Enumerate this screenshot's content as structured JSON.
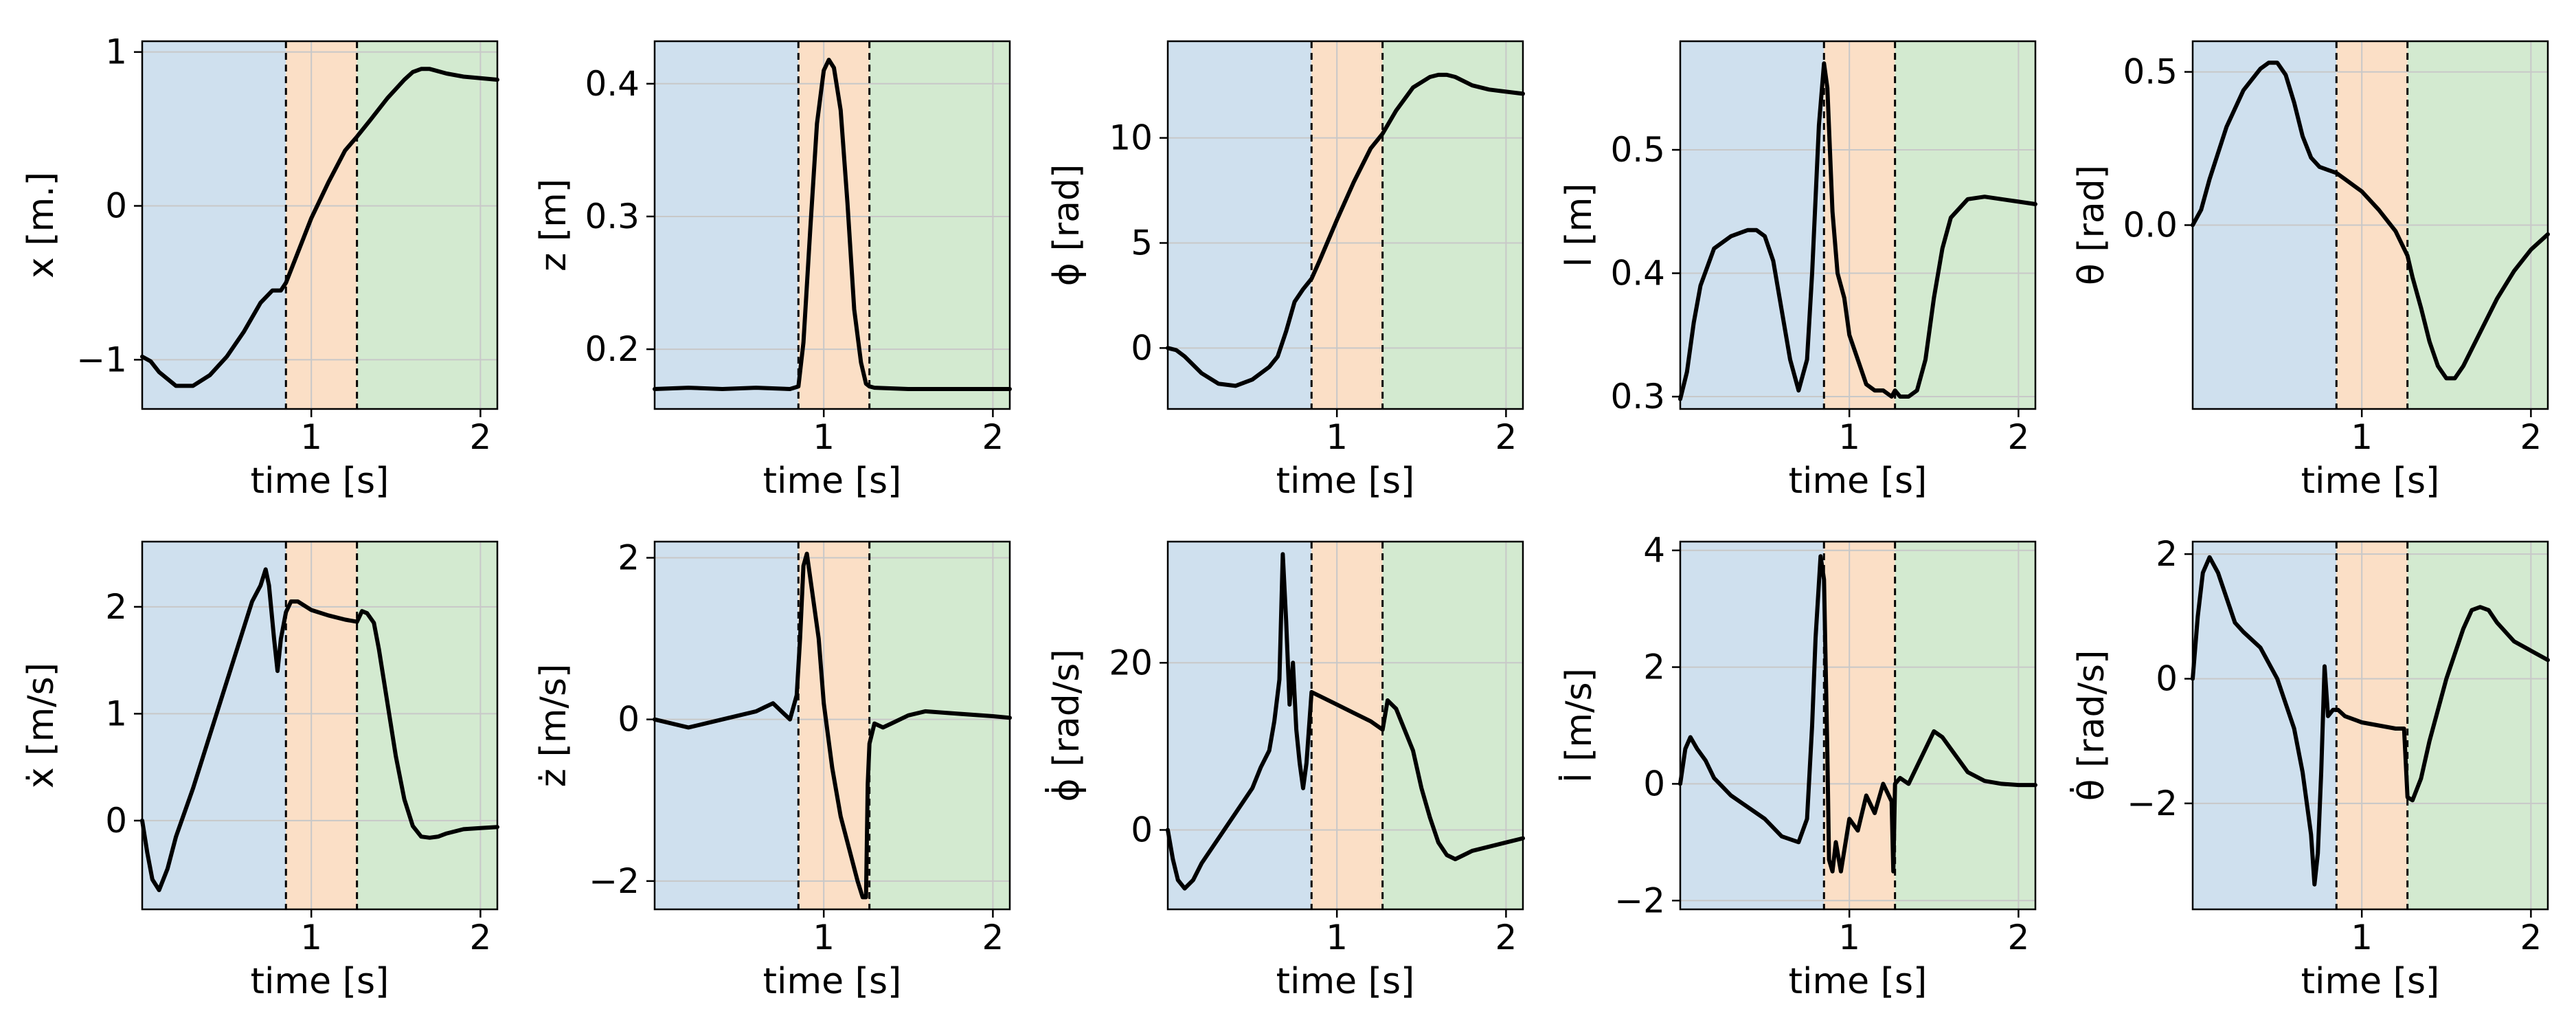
{
  "figure": {
    "title": "",
    "background": "#ffffff"
  },
  "phase_colors": {
    "phase1": "#cfe0ee",
    "phase2": "#fbdfc6",
    "phase3": "#d3ead0",
    "line": "#000000",
    "grid": "#c8c8c8",
    "divider": "#000000"
  },
  "phase_boundaries": [
    0.85,
    1.27
  ],
  "chart_data": [
    {
      "id": "x",
      "type": "line",
      "xlabel": "time [s]",
      "ylabel": "x [m.]",
      "xlim": [
        0.0,
        2.1
      ],
      "ylim": [
        -1.32,
        1.07
      ],
      "xticks": [
        1,
        2
      ],
      "xtick_labels": [
        "1",
        "2"
      ],
      "yticks": [
        -1,
        0,
        1
      ],
      "ytick_labels": [
        "−1",
        "0",
        "1"
      ],
      "x": [
        0.0,
        0.05,
        0.1,
        0.2,
        0.3,
        0.4,
        0.5,
        0.6,
        0.7,
        0.77,
        0.82,
        0.85,
        0.9,
        1.0,
        1.1,
        1.2,
        1.27,
        1.35,
        1.45,
        1.55,
        1.6,
        1.65,
        1.7,
        1.8,
        1.9,
        2.0,
        2.1
      ],
      "values": [
        -0.98,
        -1.01,
        -1.08,
        -1.17,
        -1.17,
        -1.1,
        -0.98,
        -0.82,
        -0.63,
        -0.55,
        -0.55,
        -0.5,
        -0.36,
        -0.08,
        0.15,
        0.36,
        0.45,
        0.56,
        0.7,
        0.82,
        0.87,
        0.89,
        0.89,
        0.86,
        0.84,
        0.83,
        0.82
      ]
    },
    {
      "id": "z",
      "type": "line",
      "xlabel": "time [s]",
      "ylabel": "z [m]",
      "xlim": [
        0.0,
        2.1
      ],
      "ylim": [
        0.155,
        0.432
      ],
      "xticks": [
        1,
        2
      ],
      "xtick_labels": [
        "1",
        "2"
      ],
      "yticks": [
        0.2,
        0.3,
        0.4
      ],
      "ytick_labels": [
        "0.2",
        "0.3",
        "0.4"
      ],
      "x": [
        0.0,
        0.2,
        0.4,
        0.6,
        0.8,
        0.85,
        0.88,
        0.92,
        0.96,
        1.0,
        1.03,
        1.06,
        1.1,
        1.14,
        1.18,
        1.22,
        1.25,
        1.27,
        1.3,
        1.5,
        1.8,
        2.1
      ],
      "values": [
        0.17,
        0.171,
        0.17,
        0.171,
        0.17,
        0.172,
        0.205,
        0.29,
        0.37,
        0.41,
        0.418,
        0.412,
        0.38,
        0.31,
        0.23,
        0.19,
        0.174,
        0.172,
        0.171,
        0.17,
        0.17,
        0.17
      ]
    },
    {
      "id": "phi",
      "type": "line",
      "xlabel": "time [s]",
      "ylabel": "ϕ [rad]",
      "xlim": [
        0.0,
        2.1
      ],
      "ylim": [
        -2.9,
        14.6
      ],
      "xticks": [
        1,
        2
      ],
      "xtick_labels": [
        "1",
        "2"
      ],
      "yticks": [
        0,
        5,
        10
      ],
      "ytick_labels": [
        "0",
        "5",
        "10"
      ],
      "x": [
        0.0,
        0.05,
        0.1,
        0.2,
        0.3,
        0.4,
        0.5,
        0.6,
        0.65,
        0.7,
        0.75,
        0.8,
        0.85,
        0.9,
        1.0,
        1.1,
        1.2,
        1.27,
        1.35,
        1.45,
        1.55,
        1.6,
        1.65,
        1.7,
        1.8,
        1.9,
        2.0,
        2.1
      ],
      "values": [
        0.0,
        -0.1,
        -0.4,
        -1.2,
        -1.7,
        -1.8,
        -1.5,
        -0.9,
        -0.4,
        0.8,
        2.2,
        2.8,
        3.3,
        4.2,
        6.1,
        7.9,
        9.5,
        10.2,
        11.3,
        12.4,
        12.9,
        13.0,
        13.0,
        12.9,
        12.5,
        12.3,
        12.2,
        12.1
      ]
    },
    {
      "id": "l",
      "type": "line",
      "xlabel": "time [s]",
      "ylabel": "l [m]",
      "xlim": [
        0.0,
        2.1
      ],
      "ylim": [
        0.29,
        0.588
      ],
      "xticks": [
        1,
        2
      ],
      "xtick_labels": [
        "1",
        "2"
      ],
      "yticks": [
        0.3,
        0.4,
        0.5
      ],
      "ytick_labels": [
        "0.3",
        "0.4",
        "0.5"
      ],
      "x": [
        0.0,
        0.04,
        0.08,
        0.12,
        0.2,
        0.3,
        0.4,
        0.45,
        0.5,
        0.55,
        0.6,
        0.65,
        0.7,
        0.75,
        0.78,
        0.82,
        0.85,
        0.87,
        0.9,
        0.93,
        0.97,
        1.0,
        1.05,
        1.1,
        1.15,
        1.2,
        1.25,
        1.27,
        1.3,
        1.35,
        1.4,
        1.45,
        1.5,
        1.55,
        1.6,
        1.7,
        1.8,
        1.9,
        2.0,
        2.1
      ],
      "values": [
        0.298,
        0.32,
        0.36,
        0.39,
        0.42,
        0.43,
        0.435,
        0.435,
        0.43,
        0.41,
        0.37,
        0.33,
        0.305,
        0.33,
        0.4,
        0.52,
        0.57,
        0.55,
        0.45,
        0.4,
        0.38,
        0.35,
        0.33,
        0.31,
        0.305,
        0.305,
        0.3,
        0.305,
        0.3,
        0.3,
        0.305,
        0.33,
        0.38,
        0.42,
        0.445,
        0.46,
        0.462,
        0.46,
        0.458,
        0.456
      ]
    },
    {
      "id": "theta",
      "type": "line",
      "xlabel": "time [s]",
      "ylabel": "θ [rad]",
      "xlim": [
        0.0,
        2.1
      ],
      "ylim": [
        -0.6,
        0.6
      ],
      "xticks": [
        1,
        2
      ],
      "xtick_labels": [
        "1",
        "2"
      ],
      "yticks": [
        0.0,
        0.5
      ],
      "ytick_labels": [
        "0.0",
        "0.5"
      ],
      "x": [
        0.0,
        0.05,
        0.1,
        0.2,
        0.3,
        0.4,
        0.45,
        0.5,
        0.55,
        0.6,
        0.65,
        0.7,
        0.75,
        0.8,
        0.85,
        0.9,
        1.0,
        1.1,
        1.2,
        1.27,
        1.3,
        1.35,
        1.4,
        1.45,
        1.5,
        1.55,
        1.6,
        1.7,
        1.8,
        1.9,
        2.0,
        2.1
      ],
      "values": [
        0.0,
        0.05,
        0.15,
        0.32,
        0.44,
        0.51,
        0.53,
        0.53,
        0.49,
        0.4,
        0.29,
        0.22,
        0.19,
        0.18,
        0.17,
        0.15,
        0.11,
        0.05,
        -0.02,
        -0.1,
        -0.17,
        -0.27,
        -0.38,
        -0.46,
        -0.5,
        -0.5,
        -0.46,
        -0.35,
        -0.24,
        -0.15,
        -0.08,
        -0.03
      ]
    },
    {
      "id": "x_dot",
      "type": "line",
      "xlabel": "time [s]",
      "ylabel": "ẋ [m/s]",
      "xlim": [
        0.0,
        2.1
      ],
      "ylim": [
        -0.83,
        2.61
      ],
      "xticks": [
        1,
        2
      ],
      "xtick_labels": [
        "1",
        "2"
      ],
      "yticks": [
        0,
        1,
        2
      ],
      "ytick_labels": [
        "0",
        "1",
        "2"
      ],
      "x": [
        0.0,
        0.03,
        0.06,
        0.1,
        0.15,
        0.2,
        0.3,
        0.4,
        0.5,
        0.6,
        0.65,
        0.7,
        0.73,
        0.75,
        0.78,
        0.8,
        0.82,
        0.85,
        0.88,
        0.92,
        1.0,
        1.1,
        1.2,
        1.27,
        1.3,
        1.33,
        1.37,
        1.4,
        1.45,
        1.5,
        1.55,
        1.6,
        1.65,
        1.7,
        1.75,
        1.8,
        1.9,
        2.0,
        2.1
      ],
      "values": [
        0.0,
        -0.3,
        -0.55,
        -0.65,
        -0.45,
        -0.15,
        0.3,
        0.8,
        1.3,
        1.8,
        2.05,
        2.2,
        2.35,
        2.2,
        1.7,
        1.4,
        1.7,
        1.95,
        2.05,
        2.05,
        1.97,
        1.92,
        1.88,
        1.86,
        1.96,
        1.94,
        1.85,
        1.6,
        1.1,
        0.6,
        0.2,
        -0.05,
        -0.15,
        -0.16,
        -0.15,
        -0.12,
        -0.08,
        -0.07,
        -0.06
      ]
    },
    {
      "id": "z_dot",
      "type": "line",
      "xlabel": "time [s]",
      "ylabel": "ż [m/s]",
      "xlim": [
        0.0,
        2.1
      ],
      "ylim": [
        -2.35,
        2.2
      ],
      "xticks": [
        1,
        2
      ],
      "xtick_labels": [
        "1",
        "2"
      ],
      "yticks": [
        -2,
        0,
        2
      ],
      "ytick_labels": [
        "−2",
        "0",
        "2"
      ],
      "x": [
        0.0,
        0.1,
        0.2,
        0.3,
        0.4,
        0.5,
        0.6,
        0.65,
        0.7,
        0.75,
        0.8,
        0.84,
        0.86,
        0.88,
        0.9,
        0.93,
        0.97,
        1.0,
        1.05,
        1.1,
        1.15,
        1.2,
        1.23,
        1.25,
        1.26,
        1.27,
        1.3,
        1.35,
        1.4,
        1.5,
        1.6,
        1.8,
        2.0,
        2.1
      ],
      "values": [
        0.0,
        -0.05,
        -0.1,
        -0.05,
        0.0,
        0.05,
        0.1,
        0.15,
        0.2,
        0.1,
        0.0,
        0.3,
        1.0,
        1.9,
        2.05,
        1.6,
        1.0,
        0.2,
        -0.6,
        -1.2,
        -1.6,
        -2.0,
        -2.2,
        -2.2,
        -0.8,
        -0.3,
        -0.05,
        -0.1,
        -0.05,
        0.05,
        0.1,
        0.07,
        0.04,
        0.02
      ]
    },
    {
      "id": "phi_dot",
      "type": "line",
      "xlabel": "time [s]",
      "ylabel": "ϕ̇ [rad/s]",
      "xlim": [
        0.0,
        2.1
      ],
      "ylim": [
        -9.5,
        34.5
      ],
      "xticks": [
        1,
        2
      ],
      "xtick_labels": [
        "1",
        "2"
      ],
      "yticks": [
        0,
        20
      ],
      "ytick_labels": [
        "0",
        "20"
      ],
      "x": [
        0.0,
        0.03,
        0.06,
        0.1,
        0.15,
        0.2,
        0.3,
        0.4,
        0.5,
        0.55,
        0.6,
        0.63,
        0.66,
        0.68,
        0.7,
        0.72,
        0.74,
        0.76,
        0.78,
        0.8,
        0.82,
        0.85,
        0.9,
        1.0,
        1.1,
        1.2,
        1.27,
        1.3,
        1.35,
        1.4,
        1.45,
        1.5,
        1.55,
        1.6,
        1.65,
        1.7,
        1.75,
        1.8,
        1.9,
        2.0,
        2.1
      ],
      "values": [
        0.0,
        -3.5,
        -6.0,
        -7.0,
        -6.0,
        -4.0,
        -1.0,
        2.0,
        5.0,
        7.5,
        9.5,
        13.0,
        18.0,
        33.0,
        25.0,
        15.0,
        20.0,
        12.0,
        8.0,
        5.0,
        8.0,
        16.5,
        16.0,
        15.0,
        14.0,
        13.0,
        12.0,
        15.5,
        14.5,
        12.0,
        9.5,
        5.0,
        1.5,
        -1.5,
        -3.0,
        -3.5,
        -3.0,
        -2.5,
        -2.0,
        -1.5,
        -1.0
      ]
    },
    {
      "id": "l_dot",
      "type": "line",
      "xlabel": "time [s]",
      "ylabel": "l̇ [m/s]",
      "xlim": [
        0.0,
        2.1
      ],
      "ylim": [
        -2.15,
        4.15
      ],
      "xticks": [
        1,
        2
      ],
      "xtick_labels": [
        "1",
        "2"
      ],
      "yticks": [
        -2,
        0,
        2,
        4
      ],
      "ytick_labels": [
        "−2",
        "0",
        "2",
        "4"
      ],
      "x": [
        0.0,
        0.03,
        0.06,
        0.1,
        0.15,
        0.2,
        0.3,
        0.4,
        0.5,
        0.6,
        0.7,
        0.75,
        0.78,
        0.8,
        0.83,
        0.85,
        0.87,
        0.88,
        0.9,
        0.92,
        0.95,
        1.0,
        1.05,
        1.1,
        1.15,
        1.2,
        1.25,
        1.26,
        1.27,
        1.3,
        1.35,
        1.4,
        1.45,
        1.5,
        1.55,
        1.6,
        1.7,
        1.8,
        1.9,
        2.0,
        2.1
      ],
      "values": [
        0.0,
        0.6,
        0.8,
        0.6,
        0.4,
        0.1,
        -0.2,
        -0.4,
        -0.6,
        -0.9,
        -1.0,
        -0.6,
        1.0,
        2.5,
        3.9,
        3.5,
        0.5,
        -1.3,
        -1.5,
        -1.0,
        -1.5,
        -0.6,
        -0.8,
        -0.2,
        -0.5,
        0.0,
        -0.3,
        -1.5,
        0.0,
        0.1,
        0.0,
        0.3,
        0.6,
        0.9,
        0.8,
        0.6,
        0.2,
        0.05,
        0.0,
        -0.02,
        -0.02
      ]
    },
    {
      "id": "theta_dot",
      "type": "line",
      "xlabel": "time [s]",
      "ylabel": "θ̇ [rad/s]",
      "xlim": [
        0.0,
        2.1
      ],
      "ylim": [
        -3.7,
        2.2
      ],
      "xticks": [
        1,
        2
      ],
      "xtick_labels": [
        "1",
        "2"
      ],
      "yticks": [
        -2,
        0,
        2
      ],
      "ytick_labels": [
        "−2",
        "0",
        "2"
      ],
      "x": [
        0.0,
        0.03,
        0.06,
        0.1,
        0.15,
        0.2,
        0.25,
        0.3,
        0.4,
        0.5,
        0.6,
        0.65,
        0.7,
        0.72,
        0.74,
        0.76,
        0.78,
        0.8,
        0.83,
        0.86,
        0.9,
        1.0,
        1.1,
        1.2,
        1.25,
        1.27,
        1.3,
        1.35,
        1.4,
        1.5,
        1.6,
        1.65,
        1.7,
        1.75,
        1.8,
        1.9,
        2.0,
        2.1
      ],
      "values": [
        0.0,
        1.0,
        1.7,
        1.95,
        1.7,
        1.3,
        0.9,
        0.75,
        0.5,
        0.0,
        -0.8,
        -1.5,
        -2.5,
        -3.3,
        -2.8,
        -1.5,
        0.2,
        -0.6,
        -0.5,
        -0.5,
        -0.6,
        -0.7,
        -0.75,
        -0.8,
        -0.8,
        -1.9,
        -1.95,
        -1.6,
        -1.0,
        0.0,
        0.8,
        1.1,
        1.15,
        1.1,
        0.9,
        0.6,
        0.45,
        0.3
      ]
    }
  ]
}
